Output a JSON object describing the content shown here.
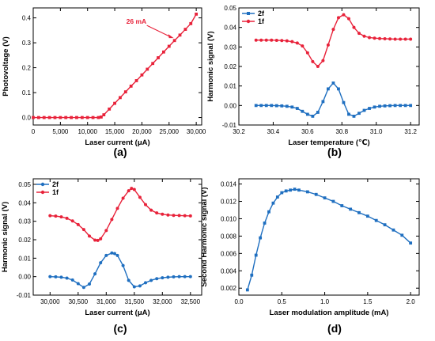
{
  "colors": {
    "red": "#e8223a",
    "blue": "#1f6fc0",
    "axis": "#000000"
  },
  "panels": [
    {
      "label": "(a)",
      "chart_data": {
        "type": "line",
        "xlabel": "Laser current (μA)",
        "ylabel": "Photovoltage (V)",
        "xlim": [
          0,
          31000
        ],
        "ylim": [
          -0.03,
          0.44
        ],
        "xticks": [
          0,
          5000,
          10000,
          15000,
          20000,
          25000,
          30000
        ],
        "xtick_labels": [
          "0",
          "5,000",
          "10,000",
          "15,000",
          "20,000",
          "25,000",
          "30,000"
        ],
        "yticks": [
          0.0,
          0.1,
          0.2,
          0.3,
          0.4
        ],
        "ytick_labels": [
          "0.0",
          "0.1",
          "0.2",
          "0.3",
          "0.4"
        ],
        "series": [
          {
            "color": "#e8223a",
            "marker": "square",
            "x": [
              0,
              1000,
              2000,
              3000,
              4000,
              5000,
              6000,
              7000,
              8000,
              9000,
              10000,
              11000,
              12000,
              12500,
              13000,
              14000,
              15000,
              16000,
              17000,
              18000,
              19000,
              20000,
              21000,
              22000,
              23000,
              24000,
              25000,
              26000,
              27000,
              28000,
              29000,
              30000
            ],
            "y": [
              0,
              0,
              0,
              0,
              0,
              0,
              0,
              0,
              0,
              0,
              0,
              0,
              0,
              0.002,
              0.011,
              0.034,
              0.057,
              0.08,
              0.103,
              0.126,
              0.148,
              0.171,
              0.194,
              0.217,
              0.24,
              0.263,
              0.286,
              0.309,
              0.331,
              0.354,
              0.377,
              0.415
            ]
          }
        ],
        "annotation": {
          "text": "26 mA",
          "x": 26000,
          "y": 0.319
        }
      }
    },
    {
      "label": "(b)",
      "chart_data": {
        "type": "line",
        "xlabel": "Laser temperature (℃)",
        "ylabel": "Harmonic signal (V)",
        "xlim": [
          30.2,
          31.25
        ],
        "ylim": [
          -0.01,
          0.05
        ],
        "xticks": [
          30.2,
          30.4,
          30.6,
          30.8,
          31.0,
          31.2
        ],
        "xtick_labels": [
          "30.2",
          "30.4",
          "30.6",
          "30.8",
          "31.0",
          "31.2"
        ],
        "yticks": [
          -0.01,
          0.0,
          0.01,
          0.02,
          0.03,
          0.04,
          0.05
        ],
        "ytick_labels": [
          "-0.01",
          "0.00",
          "0.01",
          "0.02",
          "0.03",
          "0.04",
          "0.05"
        ],
        "legend": "top-left",
        "series": [
          {
            "name": "2f",
            "color": "#1f6fc0",
            "marker": "square",
            "x": [
              30.3,
              30.33,
              30.36,
              30.39,
              30.42,
              30.45,
              30.48,
              30.51,
              30.54,
              30.57,
              30.6,
              30.63,
              30.66,
              30.69,
              30.72,
              30.75,
              30.78,
              30.81,
              30.84,
              30.87,
              30.9,
              30.93,
              30.96,
              30.99,
              31.02,
              31.05,
              31.08,
              31.11,
              31.14,
              31.17,
              31.2
            ],
            "y": [
              0.0,
              0.0,
              0.0,
              0.0,
              -0.0001,
              -0.0002,
              -0.0004,
              -0.0008,
              -0.0015,
              -0.003,
              -0.0045,
              -0.0055,
              -0.0035,
              0.002,
              0.0085,
              0.0115,
              0.0085,
              0.0015,
              -0.0045,
              -0.0055,
              -0.004,
              -0.0025,
              -0.0015,
              -0.0008,
              -0.0004,
              -0.0002,
              -0.0001,
              0.0,
              0.0,
              0.0,
              0.0
            ]
          },
          {
            "name": "1f",
            "color": "#e8223a",
            "marker": "circle",
            "x": [
              30.3,
              30.33,
              30.36,
              30.39,
              30.42,
              30.45,
              30.48,
              30.51,
              30.54,
              30.57,
              30.6,
              30.63,
              30.66,
              30.69,
              30.72,
              30.75,
              30.78,
              30.81,
              30.84,
              30.87,
              30.9,
              30.93,
              30.96,
              30.99,
              31.02,
              31.05,
              31.08,
              31.11,
              31.14,
              31.17,
              31.2
            ],
            "y": [
              0.0335,
              0.0335,
              0.0335,
              0.0335,
              0.0334,
              0.0333,
              0.0331,
              0.0327,
              0.032,
              0.0305,
              0.027,
              0.0225,
              0.02,
              0.023,
              0.031,
              0.039,
              0.045,
              0.0465,
              0.0445,
              0.04,
              0.037,
              0.0355,
              0.0348,
              0.0345,
              0.0343,
              0.0342,
              0.0341,
              0.034,
              0.034,
              0.034,
              0.034
            ]
          }
        ]
      }
    },
    {
      "label": "(c)",
      "chart_data": {
        "type": "line",
        "xlabel": "Laser current (μA)",
        "ylabel": "Harmonic signal (V)",
        "xlim": [
          29700,
          32700
        ],
        "ylim": [
          -0.01,
          0.053
        ],
        "xticks": [
          30000,
          30500,
          31000,
          31500,
          32000,
          32500
        ],
        "xtick_labels": [
          "30,000",
          "30,500",
          "31,000",
          "31,500",
          "32,000",
          "32,500"
        ],
        "yticks": [
          -0.01,
          0.0,
          0.01,
          0.02,
          0.03,
          0.04,
          0.05
        ],
        "ytick_labels": [
          "-0.01",
          "0.00",
          "0.01",
          "0.02",
          "0.03",
          "0.04",
          "0.05"
        ],
        "legend": "top-left",
        "series": [
          {
            "name": "2f",
            "color": "#1f6fc0",
            "marker": "circle",
            "x": [
              30000,
              30100,
              30200,
              30300,
              30400,
              30500,
              30600,
              30700,
              30800,
              30900,
              31000,
              31100,
              31150,
              31200,
              31300,
              31400,
              31500,
              31600,
              31700,
              31800,
              31900,
              32000,
              32100,
              32200,
              32300,
              32400,
              32500
            ],
            "y": [
              0.0,
              -0.0001,
              -0.0003,
              -0.0008,
              -0.0018,
              -0.0038,
              -0.0058,
              -0.004,
              0.0015,
              0.0075,
              0.0115,
              0.0128,
              0.0125,
              0.0115,
              0.006,
              -0.002,
              -0.0055,
              -0.005,
              -0.0033,
              -0.002,
              -0.0011,
              -0.0006,
              -0.0003,
              -0.0001,
              0.0,
              0.0,
              0.0
            ]
          },
          {
            "name": "1f",
            "color": "#e8223a",
            "marker": "circle",
            "x": [
              30000,
              30100,
              30200,
              30300,
              30400,
              30500,
              30600,
              30700,
              30800,
              30850,
              30900,
              31000,
              31100,
              31200,
              31300,
              31400,
              31450,
              31500,
              31600,
              31700,
              31800,
              31900,
              32000,
              32100,
              32200,
              32300,
              32400,
              32500
            ],
            "y": [
              0.033,
              0.0328,
              0.0324,
              0.0316,
              0.0302,
              0.0282,
              0.0255,
              0.022,
              0.0198,
              0.0196,
              0.0205,
              0.025,
              0.031,
              0.037,
              0.0425,
              0.0465,
              0.0478,
              0.0472,
              0.043,
              0.039,
              0.036,
              0.0345,
              0.0338,
              0.0334,
              0.0332,
              0.0331,
              0.033,
              0.0329
            ]
          }
        ]
      }
    },
    {
      "label": "(d)",
      "chart_data": {
        "type": "line",
        "xlabel": "Laser modulation amplitude (mA)",
        "ylabel": "Second Harmonic signal (V)",
        "xlim": [
          0.0,
          2.1
        ],
        "ylim": [
          0.0012,
          0.0146
        ],
        "xticks": [
          0.0,
          0.5,
          1.0,
          1.5,
          2.0
        ],
        "xtick_labels": [
          "0.0",
          "0.5",
          "1.0",
          "1.5",
          "2.0"
        ],
        "yticks": [
          0.002,
          0.004,
          0.006,
          0.008,
          0.01,
          0.012,
          0.014
        ],
        "ytick_labels": [
          "0.002",
          "0.004",
          "0.006",
          "0.008",
          "0.010",
          "0.012",
          "0.014"
        ],
        "series": [
          {
            "color": "#1f6fc0",
            "marker": "square",
            "x": [
              0.1,
              0.15,
              0.2,
              0.25,
              0.3,
              0.35,
              0.4,
              0.45,
              0.5,
              0.55,
              0.6,
              0.65,
              0.7,
              0.8,
              0.9,
              1.0,
              1.1,
              1.2,
              1.3,
              1.4,
              1.5,
              1.6,
              1.7,
              1.8,
              1.9,
              2.0
            ],
            "y": [
              0.0018,
              0.0035,
              0.0058,
              0.0078,
              0.0095,
              0.0108,
              0.0118,
              0.0125,
              0.013,
              0.0132,
              0.0133,
              0.0134,
              0.0133,
              0.0131,
              0.0128,
              0.0124,
              0.012,
              0.0115,
              0.0111,
              0.0107,
              0.0103,
              0.0098,
              0.0093,
              0.0087,
              0.0081,
              0.0072
            ]
          }
        ]
      }
    }
  ]
}
